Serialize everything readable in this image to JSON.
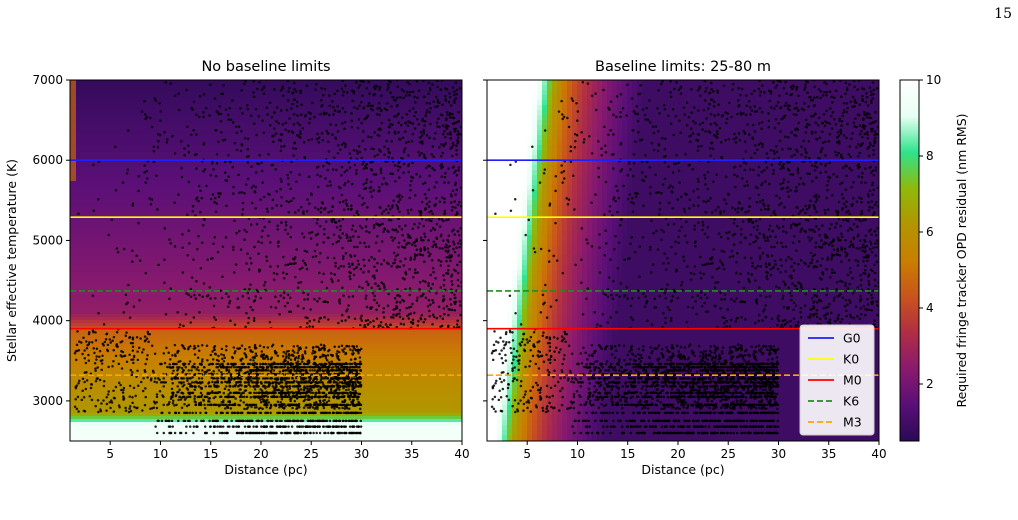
{
  "page_number": "15",
  "colorbar": {
    "label": "Required fringe tracker OPD residual (nm RMS)",
    "ticks": [
      "2",
      "4",
      "6",
      "8",
      "10"
    ],
    "tick_values": [
      2,
      4,
      6,
      8,
      10
    ],
    "range": [
      0.5,
      10
    ],
    "colormap": [
      "#2a0a55",
      "#5a0f77",
      "#8a1a6e",
      "#b02e45",
      "#c9541d",
      "#c97f00",
      "#b29500",
      "#8fb90a",
      "#2fe38c",
      "#e8fff4",
      "#ffffff"
    ]
  },
  "legend": {
    "placement": "lower-right",
    "entries": [
      {
        "label": "G0",
        "color": "#1f1fff",
        "style": "solid"
      },
      {
        "label": "K0",
        "color": "#ffff00",
        "style": "solid"
      },
      {
        "label": "M0",
        "color": "#ff0000",
        "style": "solid"
      },
      {
        "label": "K6",
        "color": "#228b22",
        "style": "dashed"
      },
      {
        "label": "M3",
        "color": "#ffa500",
        "style": "dashed"
      }
    ]
  },
  "chart_data": [
    {
      "type": "scatter",
      "title": "No baseline limits",
      "xlabel": "Distance (pc)",
      "ylabel": "Stellar effective temperature (K)",
      "xlim": [
        1,
        40
      ],
      "ylim": [
        2500,
        7000
      ],
      "x_ticks": [
        5,
        10,
        15,
        20,
        25,
        30,
        35,
        40
      ],
      "y_ticks": [
        3000,
        4000,
        5000,
        6000,
        7000
      ],
      "x_tick_labels": [
        "5",
        "10",
        "15",
        "20",
        "25",
        "30",
        "35",
        "40"
      ],
      "y_tick_labels": [
        "3000",
        "4000",
        "5000",
        "6000",
        "7000"
      ],
      "reference_lines": [
        {
          "label": "G0",
          "y": 6000
        },
        {
          "label": "K0",
          "y": 5290
        },
        {
          "label": "M0",
          "y": 3900
        },
        {
          "label": "K6",
          "y": 4370
        },
        {
          "label": "M3",
          "y": 3320
        }
      ],
      "background_map": "uniform in distance; low OPD residual (~1-2) above 4000 K, rising to ~5-6 near 3000-3900 K and ~9-10 below 2800 K",
      "points_description": "sparse stars across 1-40 pc at 3900-7000 K; dense M-dwarf population 9-30 pc at 2600-3700 K"
    },
    {
      "type": "scatter",
      "title": "Baseline limits: 25-80 m",
      "xlabel": "Distance (pc)",
      "ylabel": "",
      "xlim": [
        1,
        40
      ],
      "ylim": [
        2500,
        7000
      ],
      "x_ticks": [
        5,
        10,
        15,
        20,
        25,
        30,
        35,
        40
      ],
      "y_ticks": [
        3000,
        4000,
        5000,
        6000,
        7000
      ],
      "x_tick_labels": [
        "5",
        "10",
        "15",
        "20",
        "25",
        "30",
        "35",
        "40"
      ],
      "y_tick_labels": [],
      "reference_lines": [
        {
          "label": "G0",
          "y": 6000
        },
        {
          "label": "K0",
          "y": 5290
        },
        {
          "label": "M0",
          "y": 3900
        },
        {
          "label": "K6",
          "y": 4370
        },
        {
          "label": "M3",
          "y": 3320
        }
      ],
      "background_map": "high OPD residual (~10) near 1-4 pc, decreasing with distance to ~1 at 40 pc; boundary moves to larger distance for hotter stars",
      "points_description": "same star sample as left panel"
    }
  ]
}
